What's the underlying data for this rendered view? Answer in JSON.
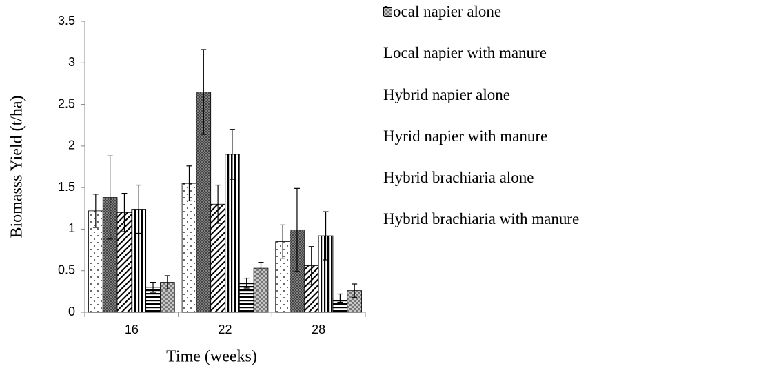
{
  "chart_data": {
    "type": "bar",
    "xlabel": "Time (weeks)",
    "ylabel": "Biomasss Yield (t/ha)",
    "categories": [
      "16",
      "22",
      "28"
    ],
    "series": [
      {
        "name": "Local napier alone",
        "color": "#ffffff",
        "pattern": "dots",
        "values": [
          1.22,
          1.55,
          0.85
        ],
        "errors": [
          0.2,
          0.21,
          0.2
        ]
      },
      {
        "name": "Local napier with manure",
        "color": "#7f7f7f",
        "pattern": "crosshatch",
        "values": [
          1.38,
          2.65,
          0.99
        ],
        "errors": [
          0.5,
          0.51,
          0.5
        ]
      },
      {
        "name": "Hybrid napier alone",
        "color": "#ffffff",
        "pattern": "diagonal",
        "values": [
          1.2,
          1.3,
          0.56
        ],
        "errors": [
          0.23,
          0.23,
          0.23
        ]
      },
      {
        "name": "Hyrid napier with manure",
        "color": "#ffffff",
        "pattern": "vertical",
        "values": [
          1.24,
          1.9,
          0.92
        ],
        "errors": [
          0.29,
          0.3,
          0.29
        ]
      },
      {
        "name": "Hybrid brachiaria alone",
        "color": "#ffffff",
        "pattern": "horizontal",
        "values": [
          0.3,
          0.35,
          0.17
        ],
        "errors": [
          0.06,
          0.06,
          0.05
        ]
      },
      {
        "name": "Hybrid brachiaria with manure",
        "color": "#a6a6a6",
        "pattern": "checker",
        "values": [
          0.36,
          0.53,
          0.26
        ],
        "errors": [
          0.08,
          0.07,
          0.08
        ]
      }
    ],
    "ylim": [
      0,
      3.5
    ],
    "yticks": [
      0,
      0.5,
      1,
      1.5,
      2,
      2.5,
      3,
      3.5
    ],
    "grid": false,
    "legend": "right"
  }
}
